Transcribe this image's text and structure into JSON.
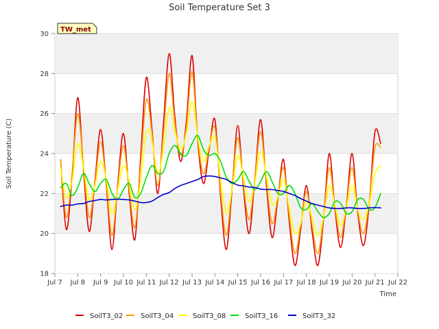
{
  "chart_data": {
    "type": "line",
    "title": "Soil Temperature Set 3",
    "xlabel": "Time",
    "ylabel": "Soil Temperature (C)",
    "annotation": "TW_met",
    "x_ticks": [
      "Jul 7",
      "Jul 8",
      "Jul 9",
      "Jul 10",
      "Jul 11",
      "Jul 12",
      "Jul 13",
      "Jul 14",
      "Jul 15",
      "Jul 16",
      "Jul 17",
      "Jul 18",
      "Jul 19",
      "Jul 20",
      "Jul 21",
      "Jul 22"
    ],
    "xlim_days": [
      7,
      22
    ],
    "ylim": [
      18,
      30
    ],
    "y_ticks": [
      18,
      20,
      22,
      24,
      26,
      28,
      30
    ],
    "grid": true,
    "legend_position": "bottom",
    "colors": {
      "SoilT3_02": "#dd0000",
      "SoilT3_04": "#ff9900",
      "SoilT3_08": "#ffff00",
      "SoilT3_16": "#00dd00",
      "SoilT3_32": "#0000cc"
    },
    "x_days": [
      7.25,
      7.5,
      7.75,
      8.0,
      8.25,
      8.5,
      8.75,
      9.0,
      9.25,
      9.5,
      9.75,
      10.0,
      10.25,
      10.5,
      10.75,
      11.0,
      11.25,
      11.5,
      11.75,
      12.0,
      12.25,
      12.5,
      12.75,
      13.0,
      13.25,
      13.5,
      13.75,
      14.0,
      14.25,
      14.5,
      14.75,
      15.0,
      15.25,
      15.5,
      15.75,
      16.0,
      16.25,
      16.5,
      16.75,
      17.0,
      17.25,
      17.5,
      17.75,
      18.0,
      18.25,
      18.5,
      18.75,
      19.0,
      19.25,
      19.5,
      19.75,
      20.0,
      20.25,
      20.5,
      20.75,
      21.0,
      21.25
    ],
    "series": [
      {
        "name": "SoilT3_02",
        "values": [
          23.7,
          20.2,
          22.8,
          26.8,
          23.2,
          20.1,
          22.6,
          25.2,
          22.4,
          19.2,
          22.5,
          25.0,
          22.0,
          19.7,
          23.8,
          27.8,
          25.2,
          22.0,
          25.5,
          29.0,
          25.8,
          23.6,
          25.6,
          28.9,
          24.6,
          22.5,
          24.2,
          25.7,
          21.8,
          19.2,
          22.2,
          25.4,
          22.2,
          20.0,
          22.8,
          25.7,
          22.4,
          19.8,
          21.7,
          23.7,
          20.6,
          18.4,
          20.2,
          22.4,
          20.1,
          18.4,
          20.7,
          24.0,
          21.2,
          19.3,
          21.4,
          24.0,
          21.0,
          19.4,
          21.5,
          25.1,
          24.5
        ]
      },
      {
        "name": "SoilT3_04",
        "values": [
          23.7,
          20.8,
          23.0,
          26.0,
          23.4,
          20.8,
          22.5,
          24.6,
          22.5,
          19.9,
          22.4,
          24.4,
          22.2,
          20.3,
          23.4,
          26.7,
          25.0,
          22.4,
          25.0,
          28.0,
          25.5,
          23.9,
          25.3,
          28.1,
          24.7,
          23.0,
          24.3,
          25.3,
          22.1,
          19.9,
          22.3,
          24.8,
          22.4,
          20.7,
          22.8,
          25.1,
          22.6,
          20.5,
          21.8,
          23.3,
          20.9,
          19.0,
          20.4,
          22.1,
          20.4,
          19.0,
          20.8,
          23.3,
          21.3,
          19.8,
          21.4,
          23.3,
          21.1,
          20.0,
          21.6,
          24.3,
          24.3
        ]
      },
      {
        "name": "SoilT3_08",
        "values": [
          23.3,
          21.8,
          22.6,
          24.5,
          23.3,
          21.7,
          22.4,
          23.6,
          22.7,
          21.0,
          22.2,
          23.4,
          22.6,
          21.2,
          22.6,
          25.1,
          24.6,
          23.0,
          24.2,
          26.3,
          25.1,
          24.2,
          25.0,
          26.6,
          24.8,
          23.6,
          24.4,
          24.8,
          22.7,
          21.0,
          22.2,
          23.9,
          22.8,
          21.6,
          22.6,
          24.1,
          22.9,
          21.5,
          21.8,
          22.7,
          21.3,
          20.0,
          20.5,
          21.6,
          20.8,
          19.9,
          20.8,
          22.4,
          21.4,
          20.4,
          21.3,
          22.4,
          21.2,
          20.7,
          21.5,
          23.0,
          23.4
        ]
      },
      {
        "name": "SoilT3_16",
        "values": [
          22.3,
          22.5,
          21.9,
          22.3,
          23.0,
          22.5,
          22.1,
          22.5,
          22.7,
          22.0,
          21.7,
          22.2,
          22.5,
          21.8,
          22.0,
          22.8,
          23.4,
          23.0,
          23.1,
          24.0,
          24.4,
          24.0,
          23.9,
          24.5,
          24.9,
          24.2,
          23.9,
          24.0,
          23.6,
          22.8,
          22.5,
          22.7,
          23.1,
          22.6,
          22.2,
          22.6,
          23.1,
          22.6,
          22.0,
          22.0,
          22.4,
          22.0,
          21.3,
          21.2,
          21.5,
          21.1,
          20.8,
          21.0,
          21.6,
          21.5,
          21.0,
          21.1,
          21.7,
          21.7,
          21.2,
          21.3,
          22.0
        ]
      },
      {
        "name": "SoilT3_32",
        "values": [
          21.35,
          21.42,
          21.42,
          21.48,
          21.5,
          21.6,
          21.65,
          21.7,
          21.68,
          21.7,
          21.72,
          21.7,
          21.68,
          21.62,
          21.55,
          21.55,
          21.62,
          21.8,
          21.95,
          22.05,
          22.25,
          22.4,
          22.5,
          22.6,
          22.7,
          22.85,
          22.88,
          22.85,
          22.78,
          22.7,
          22.55,
          22.42,
          22.38,
          22.32,
          22.3,
          22.22,
          22.2,
          22.2,
          22.15,
          22.1,
          22.0,
          21.9,
          21.75,
          21.62,
          21.5,
          21.42,
          21.35,
          21.28,
          21.25,
          21.25,
          21.28,
          21.28,
          21.25,
          21.25,
          21.28,
          21.3,
          21.28
        ]
      }
    ]
  }
}
